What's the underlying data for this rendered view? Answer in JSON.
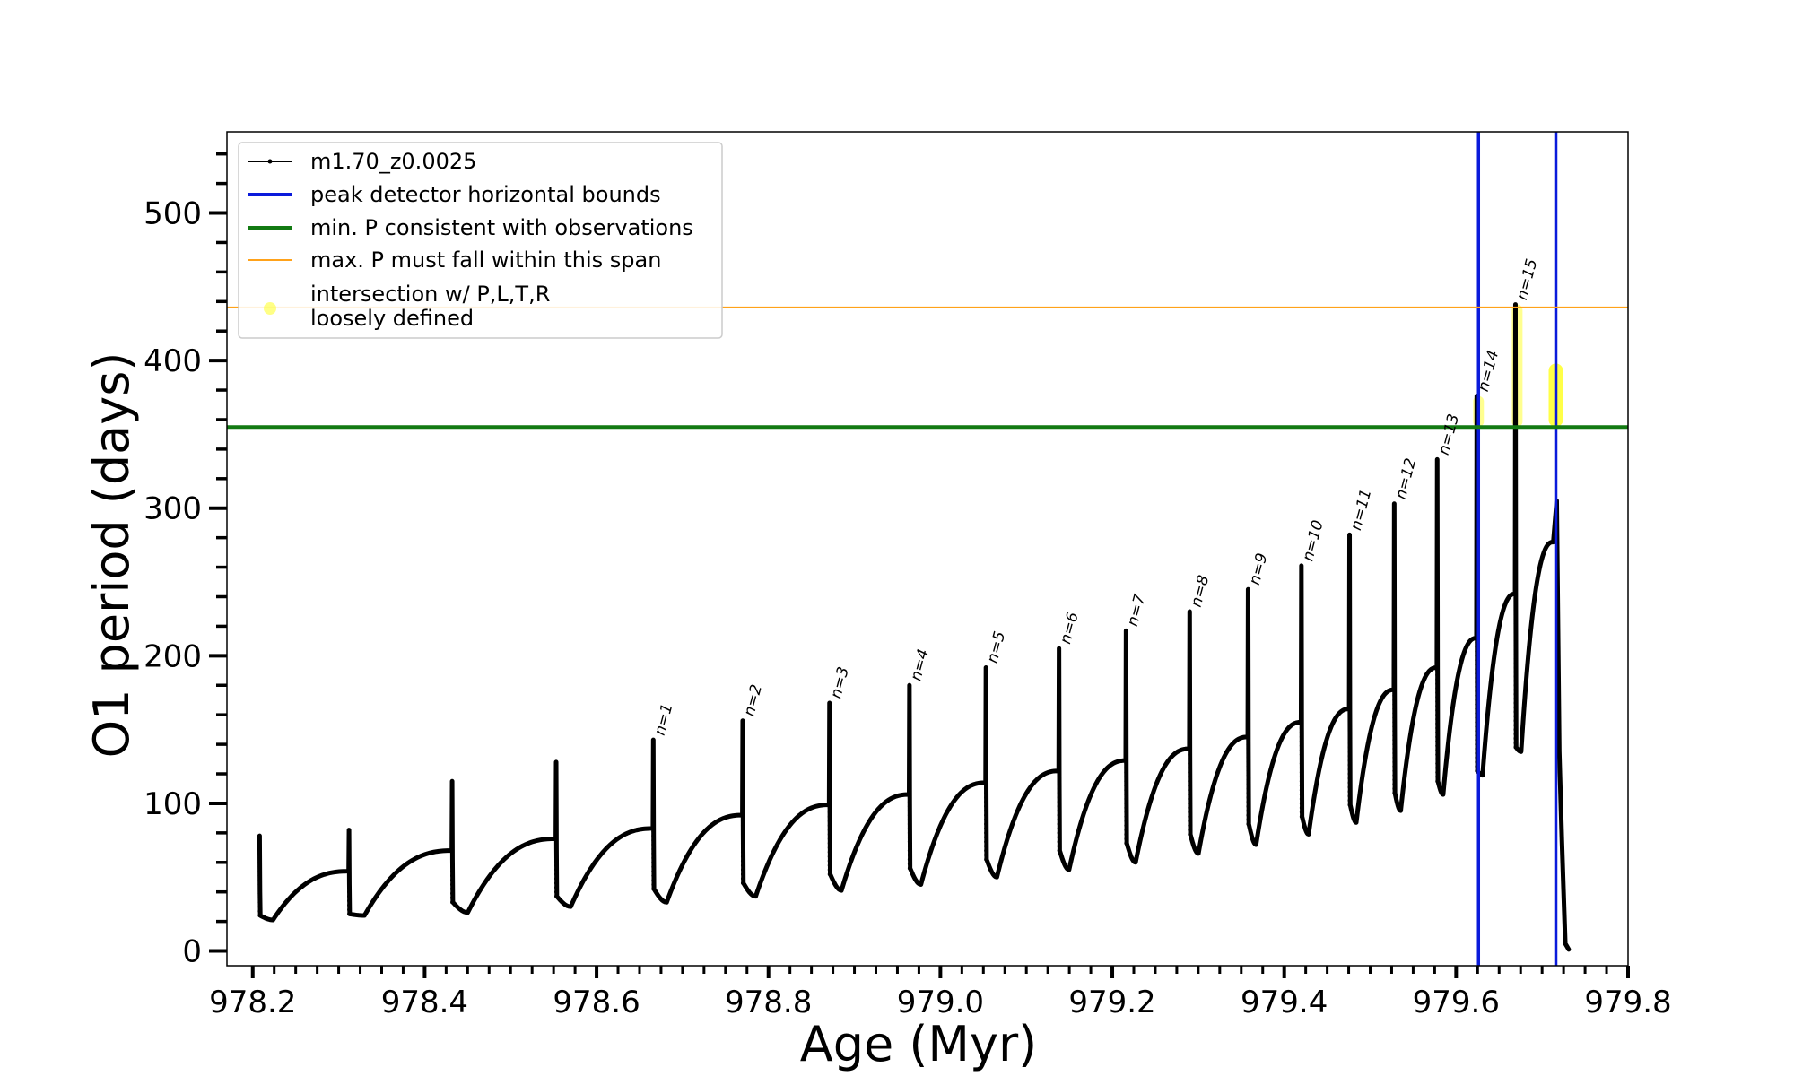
{
  "chart_data": {
    "type": "line",
    "title": "",
    "xlabel": "Age (Myr)",
    "ylabel": "O1 period (days)",
    "xlim": [
      978.17,
      979.8
    ],
    "ylim": [
      -10,
      555
    ],
    "xticks": [
      978.2,
      978.4,
      978.6,
      978.8,
      979.0,
      979.2,
      979.4,
      979.6,
      979.8
    ],
    "xtick_labels": [
      "978.2",
      "978.4",
      "978.6",
      "978.8",
      "979.0",
      "979.2",
      "979.4",
      "979.6",
      "979.8"
    ],
    "yticks": [
      0,
      100,
      200,
      300,
      400,
      500
    ],
    "ytick_labels": [
      "0",
      "100",
      "200",
      "300",
      "400",
      "500"
    ],
    "grid": false,
    "legend_position": "top-left",
    "series": [
      {
        "name": "m1.70_z0.0025",
        "color": "#000000",
        "style": "line-with-markers",
        "cycles": [
          {
            "t": 978.208,
            "min": 21,
            "end": 54,
            "trough": 24,
            "peak": 78
          },
          {
            "t": 978.312,
            "min": 24,
            "end": 68,
            "trough": 25,
            "peak": 82
          },
          {
            "t": 978.432,
            "min": 26,
            "end": 76,
            "trough": 33,
            "peak": 115
          },
          {
            "t": 978.553,
            "min": 30,
            "end": 83,
            "trough": 37,
            "peak": 128
          },
          {
            "t": 978.666,
            "min": 33,
            "end": 92,
            "trough": 42,
            "peak": 143
          },
          {
            "t": 978.77,
            "min": 37,
            "end": 99,
            "trough": 46,
            "peak": 156
          },
          {
            "t": 978.871,
            "min": 41,
            "end": 106,
            "trough": 52,
            "peak": 168
          },
          {
            "t": 978.964,
            "min": 45,
            "end": 114,
            "trough": 56,
            "peak": 180
          },
          {
            "t": 979.053,
            "min": 50,
            "end": 122,
            "trough": 62,
            "peak": 192
          },
          {
            "t": 979.138,
            "min": 55,
            "end": 129,
            "trough": 68,
            "peak": 205
          },
          {
            "t": 979.216,
            "min": 60,
            "end": 137,
            "trough": 73,
            "peak": 217
          },
          {
            "t": 979.29,
            "min": 66,
            "end": 145,
            "trough": 79,
            "peak": 230
          },
          {
            "t": 979.358,
            "min": 72,
            "end": 155,
            "trough": 86,
            "peak": 245
          },
          {
            "t": 979.42,
            "min": 79,
            "end": 164,
            "trough": 91,
            "peak": 261
          },
          {
            "t": 979.476,
            "min": 87,
            "end": 177,
            "trough": 99,
            "peak": 282
          },
          {
            "t": 979.528,
            "min": 95,
            "end": 192,
            "trough": 107,
            "peak": 303
          },
          {
            "t": 979.578,
            "min": 106,
            "end": 212,
            "trough": 115,
            "peak": 333
          },
          {
            "t": 979.624,
            "min": 119,
            "end": 242,
            "trough": 122,
            "peak": 376
          },
          {
            "t": 979.669,
            "min": 135,
            "end": 277,
            "trough": 138,
            "peak": 438
          }
        ],
        "final_decline": [
          [
            979.713,
            277
          ],
          [
            979.717,
            305
          ],
          [
            979.72,
            135
          ],
          [
            979.723,
            75
          ],
          [
            979.725,
            40
          ],
          [
            979.727,
            5
          ],
          [
            979.731,
            1
          ]
        ]
      },
      {
        "name": "peak detector horizontal bounds",
        "color": "#0a1adb",
        "type": "vline",
        "x": [
          979.626,
          979.716
        ]
      },
      {
        "name": "min. P consistent with observations",
        "color": "#127a12",
        "type": "hline",
        "y": 355
      },
      {
        "name": "max. P must fall within this span",
        "color": "#ffa21a",
        "type": "hline",
        "y": 436
      },
      {
        "name": "intersection w/ P,L,T,R\nloosely defined",
        "color": "#ffff33",
        "type": "highlight",
        "segments": [
          [
            979.626,
            355,
            376
          ],
          [
            979.671,
            355,
            438
          ],
          [
            979.716,
            355,
            398
          ]
        ]
      }
    ],
    "legend": [
      {
        "label": "m1.70_z0.0025",
        "color": "#000000",
        "kind": "line-marker"
      },
      {
        "label": "peak detector horizontal bounds",
        "color": "#0a1adb",
        "kind": "line"
      },
      {
        "label": "min. P consistent with observations",
        "color": "#127a12",
        "kind": "line"
      },
      {
        "label": "max. P must fall within this span",
        "color": "#ffa21a",
        "kind": "thin-line"
      },
      {
        "label": "intersection w/ P,L,T,R",
        "label2": "loosely defined",
        "color": "#ffff33",
        "kind": "dot"
      }
    ],
    "annotations": [
      {
        "text": "n=1",
        "x": 978.666,
        "y": 143
      },
      {
        "text": "n=2",
        "x": 978.77,
        "y": 156
      },
      {
        "text": "n=3",
        "x": 978.871,
        "y": 168
      },
      {
        "text": "n=4",
        "x": 978.964,
        "y": 180
      },
      {
        "text": "n=5",
        "x": 979.053,
        "y": 192
      },
      {
        "text": "n=6",
        "x": 979.138,
        "y": 205
      },
      {
        "text": "n=7",
        "x": 979.216,
        "y": 217
      },
      {
        "text": "n=8",
        "x": 979.29,
        "y": 230
      },
      {
        "text": "n=9",
        "x": 979.358,
        "y": 245
      },
      {
        "text": "n=10",
        "x": 979.42,
        "y": 261
      },
      {
        "text": "n=11",
        "x": 979.476,
        "y": 282
      },
      {
        "text": "n=12",
        "x": 979.528,
        "y": 303
      },
      {
        "text": "n=13",
        "x": 979.578,
        "y": 333
      },
      {
        "text": "n=14",
        "x": 979.624,
        "y": 376
      },
      {
        "text": "n=15",
        "x": 979.669,
        "y": 438
      }
    ]
  }
}
